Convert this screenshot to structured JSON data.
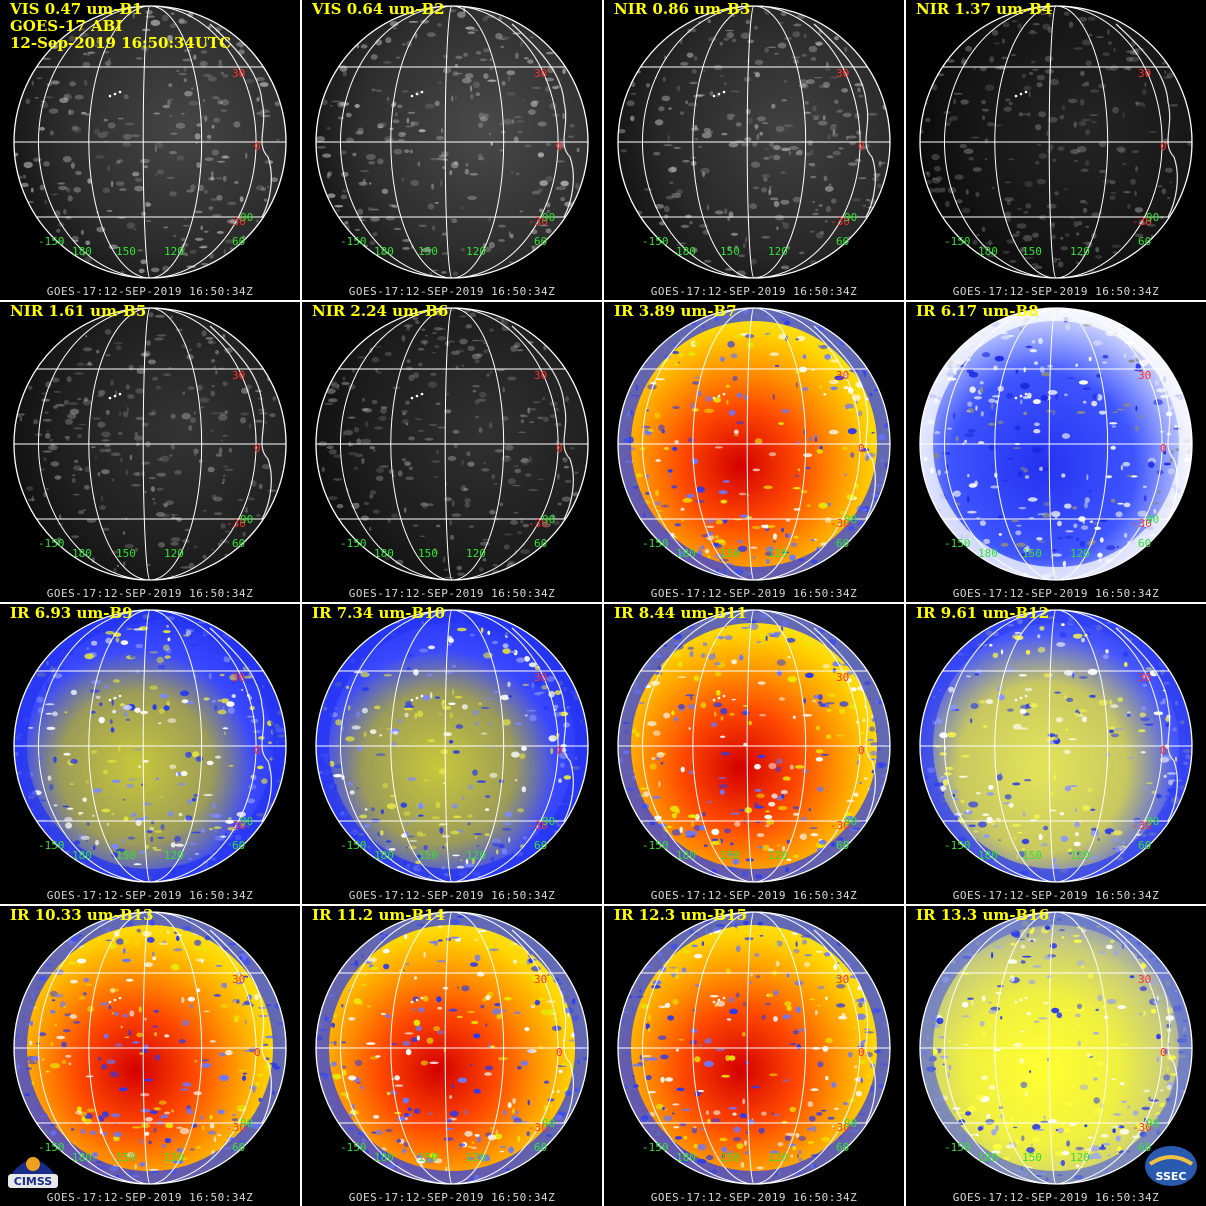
{
  "header": {
    "satellite": "GOES-17 ABI",
    "datetime": "12-Sep-2019 16:50:34UTC"
  },
  "footer_stamp": "GOES-17:12-SEP-2019 16:50:34Z",
  "grid_labels": {
    "lat_north": "30",
    "lat_equator": "0",
    "lat_south": "-30",
    "lon": [
      "-150",
      "180",
      "150",
      "120",
      "90",
      "60"
    ]
  },
  "logos": {
    "left": "CIMSS",
    "right": "SSEC"
  },
  "panels": [
    {
      "id": "B1",
      "title": "VIS 0.47 um-B1",
      "scheme": "vis",
      "brightness": 0.55
    },
    {
      "id": "B2",
      "title": "VIS 0.64 um-B2",
      "scheme": "vis",
      "brightness": 0.6
    },
    {
      "id": "B3",
      "title": "NIR 0.86 um-B3",
      "scheme": "vis",
      "brightness": 0.5
    },
    {
      "id": "B4",
      "title": "NIR 1.37 um-B4",
      "scheme": "vis",
      "brightness": 0.18
    },
    {
      "id": "B5",
      "title": "NIR 1.61 um-B5",
      "scheme": "vis",
      "brightness": 0.35
    },
    {
      "id": "B6",
      "title": "NIR 2.24 um-B6",
      "scheme": "vis",
      "brightness": 0.32
    },
    {
      "id": "B7",
      "title": "IR 3.89 um-B7",
      "scheme": "ir",
      "brightness": 1
    },
    {
      "id": "B8",
      "title": "IR 6.17 um-B8",
      "scheme": "wv1",
      "brightness": 1
    },
    {
      "id": "B9",
      "title": "IR 6.93 um-B9",
      "scheme": "wv2",
      "brightness": 1
    },
    {
      "id": "B10",
      "title": "IR 7.34 um-B10",
      "scheme": "wv2",
      "brightness": 1
    },
    {
      "id": "B11",
      "title": "IR 8.44 um-B11",
      "scheme": "ir",
      "brightness": 1
    },
    {
      "id": "B12",
      "title": "IR 9.61 um-B12",
      "scheme": "oz",
      "brightness": 1
    },
    {
      "id": "B13",
      "title": "IR 10.33 um-B13",
      "scheme": "ir",
      "brightness": 1
    },
    {
      "id": "B14",
      "title": "IR 11.2 um-B14",
      "scheme": "ir",
      "brightness": 1
    },
    {
      "id": "B15",
      "title": "IR 12.3 um-B15",
      "scheme": "ir",
      "brightness": 1
    },
    {
      "id": "B16",
      "title": "IR 13.3 um-B16",
      "scheme": "co2",
      "brightness": 1
    }
  ],
  "colors": {
    "title": "#ffff00",
    "latitude_label": "#ff3030",
    "longitude_label": "#33e033",
    "gridline": "#ffffff",
    "background": "#000000"
  }
}
